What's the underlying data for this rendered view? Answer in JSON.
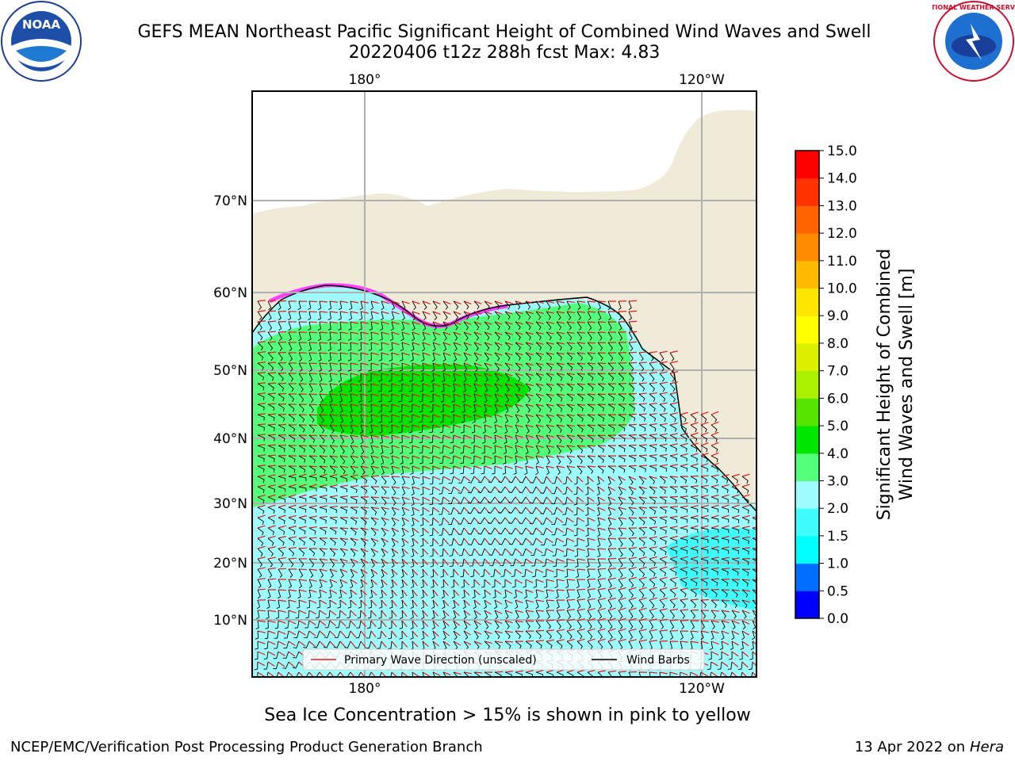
{
  "title": {
    "line1": "GEFS MEAN Northeast Pacific Significant Height of Combined Wind Waves and Swell",
    "line2": "20220406 t12z 288h fcst   Max: 4.83"
  },
  "map": {
    "top_lon_labels": [
      "180°",
      "120°W"
    ],
    "bottom_lon_labels": [
      "180°",
      "120°W"
    ],
    "lat_labels": [
      "70°N",
      "60°N",
      "50°N",
      "40°N",
      "30°N",
      "20°N",
      "10°N"
    ],
    "colors": {
      "ocean_low": "#9ffcfc",
      "ocean_mid": "#54ff7a",
      "ocean_high": "#00e600",
      "land": "#efebd8",
      "ice": "#ff40ff",
      "grid": "#b0b0b0",
      "wave_arrow": "#e31a1c",
      "wind_barb": "#000000"
    }
  },
  "colorbar": {
    "label_line1": "Significant Height of Combined",
    "label_line2": "Wind Waves and Swell [m]",
    "ticks": [
      "0.0",
      "0.5",
      "1.0",
      "1.5",
      "2.0",
      "3.0",
      "4.0",
      "5.0",
      "6.0",
      "7.0",
      "8.0",
      "9.0",
      "10.0",
      "11.0",
      "12.0",
      "13.0",
      "14.0",
      "15.0"
    ],
    "colors": [
      "#0000ff",
      "#006fff",
      "#00ffff",
      "#3ffdfd",
      "#9ffcfc",
      "#54ff7a",
      "#00e600",
      "#55e400",
      "#aaf000",
      "#dcf000",
      "#ffff00",
      "#ffe600",
      "#ffbb00",
      "#ff8c00",
      "#ff6400",
      "#ff3200",
      "#ff0000"
    ]
  },
  "legend": {
    "wave_direction": "Primary Wave Direction (unscaled)",
    "wind_barbs": "Wind Barbs"
  },
  "caption": "Sea Ice Concentration > 15% is shown in pink to yellow",
  "footer": {
    "left": "NCEP/EMC/Verification Post Processing Product Generation Branch",
    "right_prefix": "13 Apr 2022 on ",
    "right_machine": "Hera"
  },
  "logos": {
    "noaa_text": "NOAA",
    "nws_text": "NATIONAL WEATHER SERVICE"
  }
}
